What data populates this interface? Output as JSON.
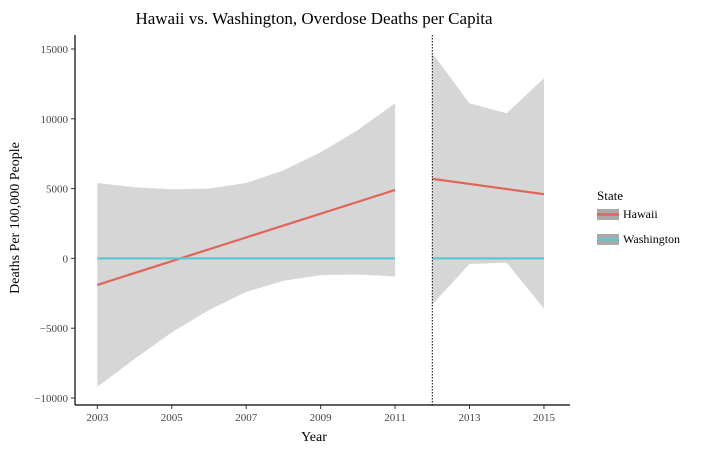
{
  "chart_data": {
    "type": "line",
    "title": "Hawaii vs. Washington, Overdose Deaths per Capita",
    "xlabel": "Year",
    "ylabel": "Deaths Per 100,000 People",
    "xlim": [
      2002.4,
      2015.7
    ],
    "ylim": [
      -10500,
      16000
    ],
    "x_ticks": [
      2003,
      2005,
      2007,
      2009,
      2011,
      2013,
      2015
    ],
    "y_ticks": [
      -10000,
      -5000,
      0,
      5000,
      10000,
      15000
    ],
    "y_tick_labels": [
      "−10000",
      "−5000",
      "0",
      "5000",
      "10000",
      "15000"
    ],
    "cutoff_line": {
      "x": 2012,
      "style": "dotted"
    },
    "grid": false,
    "legend": {
      "title": "State",
      "placement": "right",
      "entries": [
        {
          "label": "Hawaii",
          "color": "#E0645A"
        },
        {
          "label": "Washington",
          "color": "#5BC8D0"
        }
      ]
    },
    "confidence_band_color": "#D6D6D6",
    "segments": [
      {
        "name": "pre",
        "band_x": [
          2003,
          2004,
          2005,
          2006,
          2007,
          2008,
          2009,
          2010,
          2011
        ],
        "band_upper": [
          5400,
          5100,
          4950,
          5000,
          5400,
          6300,
          7600,
          9200,
          11100
        ],
        "band_lower": [
          -9200,
          -7200,
          -5300,
          -3700,
          -2400,
          -1600,
          -1200,
          -1150,
          -1300
        ],
        "series": [
          {
            "state": "Hawaii",
            "x": [
              2003,
              2011
            ],
            "y": [
              -1900,
              4900
            ]
          },
          {
            "state": "Washington",
            "x": [
              2003,
              2011
            ],
            "y": [
              0,
              0
            ]
          }
        ]
      },
      {
        "name": "post",
        "band_x": [
          2012,
          2013,
          2014,
          2015
        ],
        "band_upper": [
          14700,
          11100,
          10400,
          12900
        ],
        "band_lower": [
          -3300,
          -400,
          -300,
          -3600
        ],
        "series": [
          {
            "state": "Hawaii",
            "x": [
              2012,
              2015
            ],
            "y": [
              5700,
              4600
            ]
          },
          {
            "state": "Washington",
            "x": [
              2012,
              2015
            ],
            "y": [
              0,
              0
            ]
          }
        ]
      }
    ]
  }
}
